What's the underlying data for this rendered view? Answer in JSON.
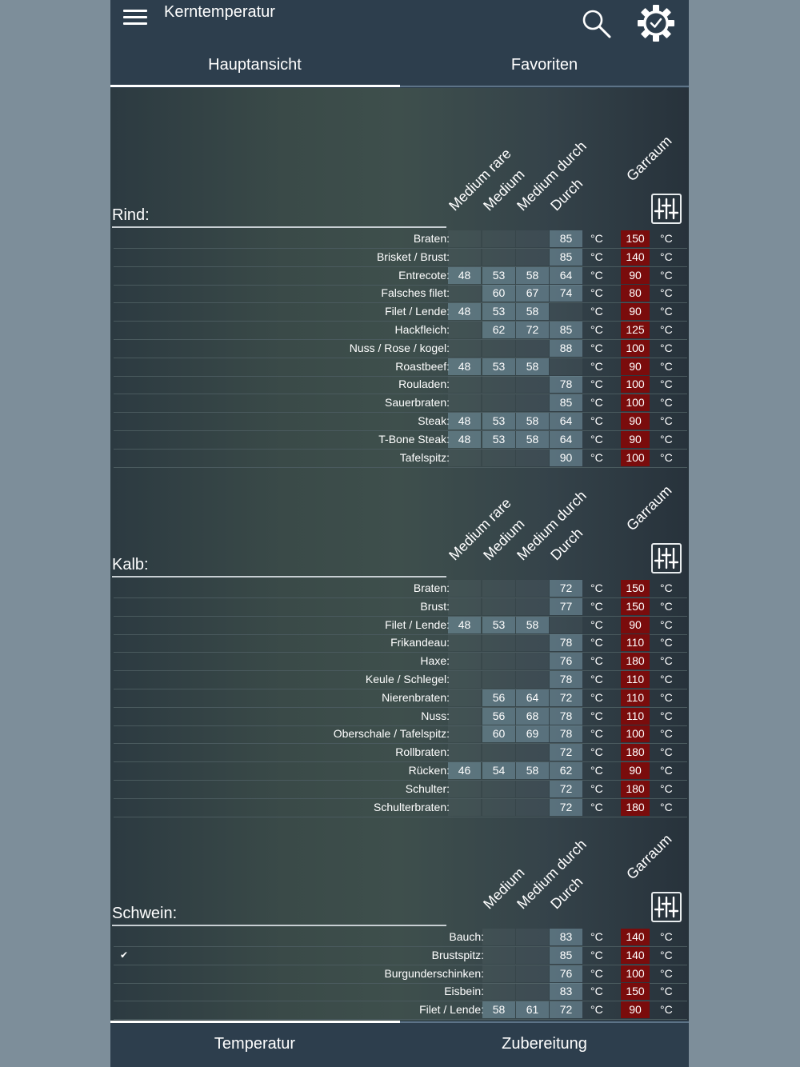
{
  "app": {
    "title": "Kerntemperatur",
    "icons": {
      "menu": "menu-icon",
      "search": "search-icon",
      "settings": "gear-check-icon",
      "adjust": "equalizer-icon",
      "check": "check-icon"
    },
    "colors": {
      "appbar": "#2d3e4d",
      "garraum": "#7a0c0c",
      "cell": "#5f7f8f"
    }
  },
  "tabs": [
    {
      "label": "Hauptansicht",
      "active": true
    },
    {
      "label": "Favoriten",
      "active": false
    }
  ],
  "unit": "°C",
  "columns": [
    "Medium rare",
    "Medium",
    "Medium durch",
    "Durch"
  ],
  "garraum_label": "Garraum",
  "sections": [
    {
      "title": "Rind:",
      "columns": [
        "Medium rare",
        "Medium",
        "Medium durch",
        "Durch"
      ],
      "rows": [
        {
          "name": "Braten:",
          "temps": [
            null,
            null,
            null,
            85
          ],
          "garraum": 150
        },
        {
          "name": "Brisket / Brust:",
          "temps": [
            null,
            null,
            null,
            85
          ],
          "garraum": 140
        },
        {
          "name": "Entrecote:",
          "temps": [
            48,
            53,
            58,
            64
          ],
          "garraum": 90
        },
        {
          "name": "Falsches filet:",
          "temps": [
            null,
            60,
            67,
            74
          ],
          "garraum": 80
        },
        {
          "name": "Filet / Lende:",
          "temps": [
            48,
            53,
            58,
            null
          ],
          "garraum": 90
        },
        {
          "name": "Hackfleich:",
          "temps": [
            null,
            62,
            72,
            85
          ],
          "garraum": 125
        },
        {
          "name": "Nuss / Rose / kogel:",
          "temps": [
            null,
            null,
            null,
            88
          ],
          "garraum": 100
        },
        {
          "name": "Roastbeef:",
          "temps": [
            48,
            53,
            58,
            null
          ],
          "garraum": 90
        },
        {
          "name": "Rouladen:",
          "temps": [
            null,
            null,
            null,
            78
          ],
          "garraum": 100
        },
        {
          "name": "Sauerbraten:",
          "temps": [
            null,
            null,
            null,
            85
          ],
          "garraum": 100
        },
        {
          "name": "Steak:",
          "temps": [
            48,
            53,
            58,
            64
          ],
          "garraum": 90
        },
        {
          "name": "T-Bone Steak:",
          "temps": [
            48,
            53,
            58,
            64
          ],
          "garraum": 90
        },
        {
          "name": "Tafelspitz:",
          "temps": [
            null,
            null,
            null,
            90
          ],
          "garraum": 100
        }
      ]
    },
    {
      "title": "Kalb:",
      "columns": [
        "Medium rare",
        "Medium",
        "Medium durch",
        "Durch"
      ],
      "rows": [
        {
          "name": "Braten:",
          "temps": [
            null,
            null,
            null,
            72
          ],
          "garraum": 150
        },
        {
          "name": "Brust:",
          "temps": [
            null,
            null,
            null,
            77
          ],
          "garraum": 150
        },
        {
          "name": "Filet / Lende:",
          "temps": [
            48,
            53,
            58,
            null
          ],
          "garraum": 90
        },
        {
          "name": "Frikandeau:",
          "temps": [
            null,
            null,
            null,
            78
          ],
          "garraum": 110
        },
        {
          "name": "Haxe:",
          "temps": [
            null,
            null,
            null,
            76
          ],
          "garraum": 180
        },
        {
          "name": "Keule / Schlegel:",
          "temps": [
            null,
            null,
            null,
            78
          ],
          "garraum": 110
        },
        {
          "name": "Nierenbraten:",
          "temps": [
            null,
            56,
            64,
            72
          ],
          "garraum": 110
        },
        {
          "name": "Nuss:",
          "temps": [
            null,
            56,
            68,
            78
          ],
          "garraum": 110
        },
        {
          "name": "Oberschale / Tafelspitz:",
          "temps": [
            null,
            60,
            69,
            78
          ],
          "garraum": 100
        },
        {
          "name": "Rollbraten:",
          "temps": [
            null,
            null,
            null,
            72
          ],
          "garraum": 180
        },
        {
          "name": "Rücken:",
          "temps": [
            46,
            54,
            58,
            62
          ],
          "garraum": 90
        },
        {
          "name": "Schulter:",
          "temps": [
            null,
            null,
            null,
            72
          ],
          "garraum": 180
        },
        {
          "name": "Schulterbraten:",
          "temps": [
            null,
            null,
            null,
            72
          ],
          "garraum": 180
        }
      ]
    },
    {
      "title": "Schwein:",
      "columns": [
        "Medium",
        "Medium durch",
        "Durch"
      ],
      "rows": [
        {
          "name": "Bauch:",
          "temps": [
            null,
            null,
            83
          ],
          "garraum": 140
        },
        {
          "name": "Brustspitz:",
          "temps": [
            null,
            null,
            85
          ],
          "garraum": 140,
          "favorite": true
        },
        {
          "name": "Burgunderschinken:",
          "temps": [
            null,
            null,
            76
          ],
          "garraum": 100
        },
        {
          "name": "Eisbein:",
          "temps": [
            null,
            null,
            83
          ],
          "garraum": 150
        },
        {
          "name": "Filet / Lende:",
          "temps": [
            58,
            61,
            72
          ],
          "garraum": 90
        }
      ]
    }
  ],
  "bottom_tabs": [
    {
      "label": "Temperatur",
      "active": true
    },
    {
      "label": "Zubereitung",
      "active": false
    }
  ]
}
